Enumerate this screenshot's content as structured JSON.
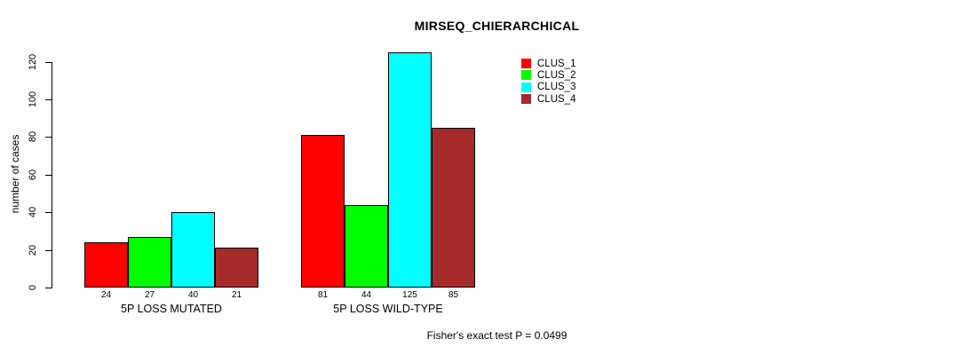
{
  "chart_data": {
    "type": "bar",
    "title": "MIRSEQ_CHIERARCHICAL",
    "ylabel": "number of cases",
    "xlabel": "",
    "categories": [
      "5P LOSS MUTATED",
      "5P LOSS WILD-TYPE"
    ],
    "series": [
      {
        "name": "CLUS_1",
        "color": "#FF0000",
        "values": [
          24,
          81
        ]
      },
      {
        "name": "CLUS_2",
        "color": "#00FF00",
        "values": [
          27,
          44
        ]
      },
      {
        "name": "CLUS_3",
        "color": "#00FFFF",
        "values": [
          40,
          125
        ]
      },
      {
        "name": "CLUS_4",
        "color": "#A52A2A",
        "values": [
          21,
          85
        ]
      }
    ],
    "yticks": [
      0,
      20,
      40,
      60,
      80,
      100,
      120
    ],
    "ylim": [
      0,
      133
    ],
    "grid": false,
    "legend_position": "top-right",
    "bar_value_labels_shown": true,
    "annotation": "Fisher's exact test P = 0.0499"
  }
}
